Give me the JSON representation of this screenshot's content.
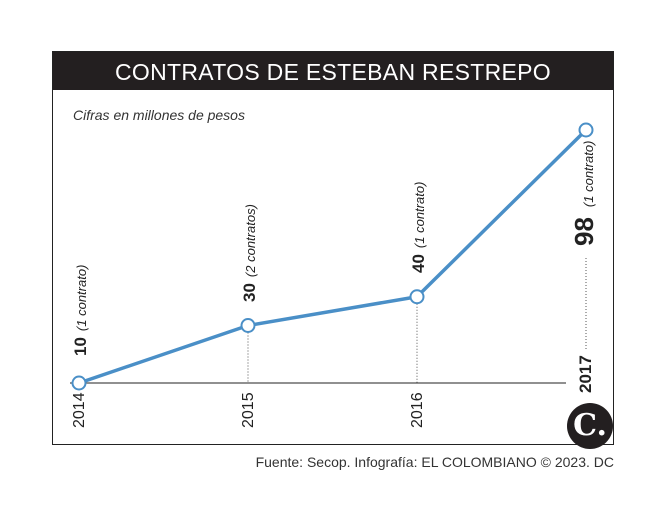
{
  "chart_data": {
    "type": "line",
    "title": "CONTRATOS DE ESTEBAN RESTREPO",
    "subtitle": "Cifras en millones de pesos",
    "categories": [
      "2014",
      "2015",
      "2016",
      "2017"
    ],
    "values": [
      10,
      30,
      40,
      98
    ],
    "value_labels": [
      "10",
      "30",
      "40",
      "98"
    ],
    "annotations": [
      "(1 contrato)",
      "(2 contratos)",
      "(1 contrato)",
      "(1 contrato)"
    ],
    "ylim": [
      0,
      100
    ],
    "grid": false,
    "colors": {
      "line": "#4a8fc7",
      "title_bg": "#231f20",
      "text": "#222222"
    }
  },
  "source": "Fuente: Secop. Infografía: EL COLOMBIANO © 2023. DC",
  "logo_letter": "C."
}
